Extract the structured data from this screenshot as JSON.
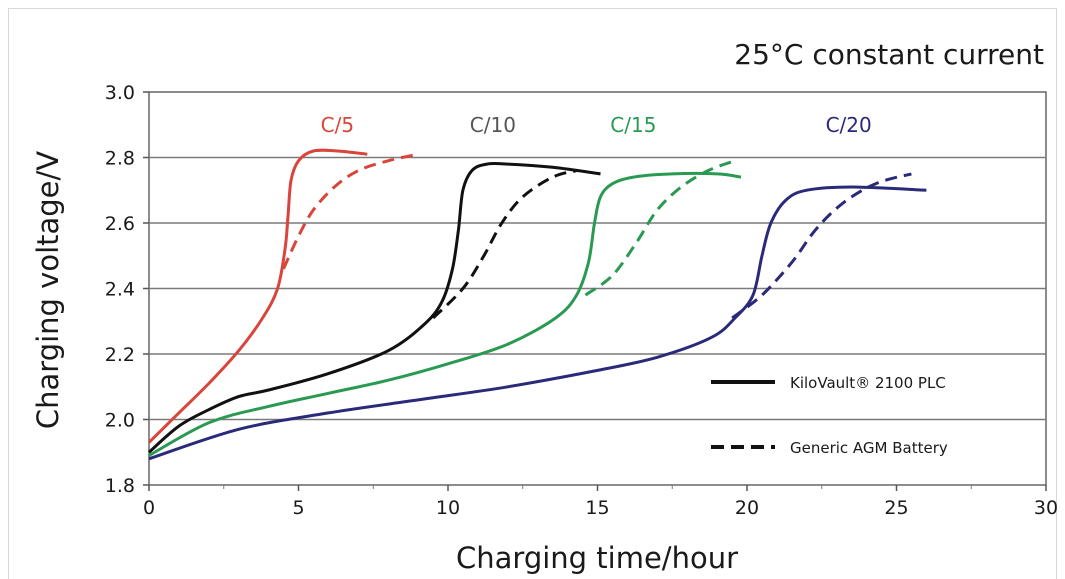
{
  "chart_data": {
    "type": "line",
    "title": "25°C constant current",
    "xlabel": "Charging time/hour",
    "ylabel": "Charging voltage/V",
    "xlim": [
      0,
      30
    ],
    "ylim": [
      1.8,
      3.0
    ],
    "xticks": [
      "0",
      "5",
      "10",
      "15",
      "20",
      "25",
      "30"
    ],
    "yticks": [
      "1.8",
      "2.0",
      "2.2",
      "2.4",
      "2.6",
      "2.8",
      "3.0"
    ],
    "grid": "horizontal",
    "legend": {
      "placement": "bottom-right",
      "entries": [
        {
          "label": "KiloVault® 2100 PLC",
          "style": "solid"
        },
        {
          "label": "Generic AGM Battery",
          "style": "dashed"
        }
      ]
    },
    "rate_labels": [
      {
        "text": "C/5",
        "color": "#d9453b",
        "x": 6.3,
        "y": 2.9
      },
      {
        "text": "C/10",
        "color": "#555555",
        "x": 11.5,
        "y": 2.9
      },
      {
        "text": "C/15",
        "color": "#2a9a52",
        "x": 16.2,
        "y": 2.9
      },
      {
        "text": "C/20",
        "color": "#2b2a7a",
        "x": 23.4,
        "y": 2.9
      }
    ],
    "series": [
      {
        "rate": "C/5",
        "battery": "KiloVault® 2100 PLC",
        "color": "#d9453b",
        "style": "solid",
        "x": [
          0,
          1,
          2,
          3,
          3.8,
          4.3,
          4.55,
          4.65,
          4.75,
          5.0,
          5.5,
          6.3,
          7.3
        ],
        "y": [
          1.93,
          2.02,
          2.11,
          2.21,
          2.31,
          2.4,
          2.52,
          2.62,
          2.73,
          2.79,
          2.82,
          2.82,
          2.81
        ]
      },
      {
        "rate": "C/5",
        "battery": "Generic AGM Battery",
        "color": "#d9453b",
        "style": "dashed",
        "x": [
          4.5,
          5.0,
          5.5,
          6.2,
          7.0,
          8.0,
          9.0
        ],
        "y": [
          2.46,
          2.56,
          2.64,
          2.71,
          2.76,
          2.79,
          2.81
        ]
      },
      {
        "rate": "C/10",
        "battery": "KiloVault® 2100 PLC",
        "color": "#111111",
        "style": "solid",
        "x": [
          0,
          1,
          2,
          3,
          4,
          6,
          8,
          9.2,
          9.8,
          10.15,
          10.35,
          10.5,
          10.8,
          11.3,
          12.0,
          13.5,
          15.1
        ],
        "y": [
          1.9,
          1.98,
          2.03,
          2.07,
          2.09,
          2.14,
          2.21,
          2.29,
          2.36,
          2.46,
          2.58,
          2.7,
          2.76,
          2.78,
          2.78,
          2.77,
          2.75
        ]
      },
      {
        "rate": "C/10",
        "battery": "Generic AGM Battery",
        "color": "#111111",
        "style": "dashed",
        "x": [
          9.5,
          10.5,
          11.2,
          11.8,
          12.5,
          13.5,
          14.3
        ],
        "y": [
          2.31,
          2.4,
          2.5,
          2.6,
          2.68,
          2.74,
          2.76
        ]
      },
      {
        "rate": "C/15",
        "battery": "KiloVault® 2100 PLC",
        "color": "#2a9a52",
        "style": "solid",
        "x": [
          0,
          2,
          4,
          6,
          8,
          10,
          12,
          13.6,
          14.3,
          14.7,
          14.9,
          15.1,
          15.5,
          16.2,
          17.5,
          19.0,
          19.8
        ],
        "y": [
          1.89,
          1.99,
          2.04,
          2.08,
          2.12,
          2.17,
          2.23,
          2.31,
          2.38,
          2.48,
          2.6,
          2.68,
          2.72,
          2.74,
          2.75,
          2.75,
          2.74
        ]
      },
      {
        "rate": "C/15",
        "battery": "Generic AGM Battery",
        "color": "#2a9a52",
        "style": "dashed",
        "x": [
          14.6,
          15.5,
          16.3,
          17.0,
          17.8,
          18.7,
          19.6
        ],
        "y": [
          2.38,
          2.44,
          2.54,
          2.64,
          2.71,
          2.76,
          2.79
        ]
      },
      {
        "rate": "C/20",
        "battery": "KiloVault® 2100 PLC",
        "color": "#2b2a7a",
        "style": "solid",
        "x": [
          0,
          3,
          6,
          9,
          12,
          15,
          17,
          18.8,
          19.6,
          20.2,
          20.5,
          20.8,
          21.3,
          22.0,
          23.5,
          26.0
        ],
        "y": [
          1.88,
          1.97,
          2.02,
          2.06,
          2.1,
          2.15,
          2.19,
          2.25,
          2.31,
          2.38,
          2.5,
          2.6,
          2.67,
          2.7,
          2.71,
          2.7
        ]
      },
      {
        "rate": "C/20",
        "battery": "Generic AGM Battery",
        "color": "#2b2a7a",
        "style": "dashed",
        "x": [
          19.5,
          20.5,
          21.5,
          22.3,
          23.2,
          24.3,
          25.5
        ],
        "y": [
          2.31,
          2.38,
          2.48,
          2.58,
          2.66,
          2.72,
          2.75
        ]
      }
    ]
  }
}
